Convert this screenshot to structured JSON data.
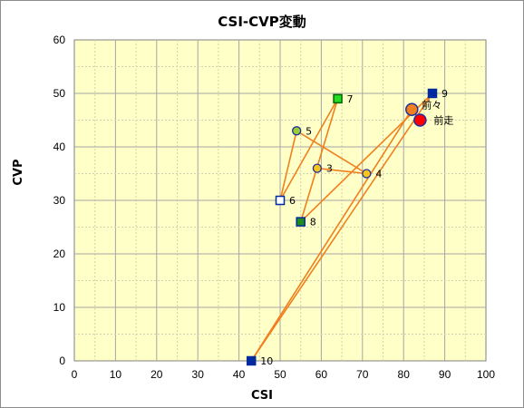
{
  "chart_data": {
    "type": "scatter",
    "title": "CSI-CVP変動",
    "xlabel": "CSI",
    "ylabel": "CVP",
    "xlim": [
      0,
      100
    ],
    "ylim": [
      0,
      60
    ],
    "x_ticks": [
      0,
      10,
      20,
      30,
      40,
      50,
      60,
      70,
      80,
      90,
      100
    ],
    "y_ticks": [
      0,
      10,
      20,
      30,
      40,
      50,
      60
    ],
    "grid": true,
    "minor_grid_step": 5,
    "colors": {
      "plot_bg": "#ffffc8",
      "grid_major": "#a6a6a6",
      "grid_minor": "#d2d2b0",
      "line": "#f07f1e",
      "navy": "#002a9e"
    },
    "path_order": [
      "3",
      "4",
      "5",
      "6",
      "7",
      "8",
      "9",
      "10",
      "前々",
      "前走"
    ],
    "points": [
      {
        "label": "3",
        "x": 59,
        "y": 36,
        "marker": "circle",
        "fill": "#f5c518",
        "stroke": "#1f2f9f"
      },
      {
        "label": "4",
        "x": 71,
        "y": 35,
        "marker": "circle",
        "fill": "#f5c518",
        "stroke": "#1f2f9f"
      },
      {
        "label": "5",
        "x": 54,
        "y": 43,
        "marker": "circle",
        "fill": "#9acd32",
        "stroke": "#1f2f9f"
      },
      {
        "label": "6",
        "x": 50,
        "y": 30,
        "marker": "square",
        "fill": "#ffffff",
        "stroke": "#002a9e"
      },
      {
        "label": "7",
        "x": 64,
        "y": 49,
        "marker": "square",
        "fill": "#22dd22",
        "stroke": "#006400"
      },
      {
        "label": "8",
        "x": 55,
        "y": 26,
        "marker": "square",
        "fill": "#1e8c1e",
        "stroke": "#002a9e"
      },
      {
        "label": "9",
        "x": 87,
        "y": 50,
        "marker": "square",
        "fill": "#002a9e",
        "stroke": "#002a9e"
      },
      {
        "label": "10",
        "x": 43,
        "y": 0,
        "marker": "square",
        "fill": "#002a9e",
        "stroke": "#002a9e"
      },
      {
        "label": "前々",
        "x": 82,
        "y": 47,
        "marker": "big-circle",
        "fill": "#f07f1e",
        "stroke": "#1f2f9f"
      },
      {
        "label": "前走",
        "x": 84,
        "y": 45,
        "marker": "big-circle",
        "fill": "#ff0000",
        "stroke": "#1f2f9f"
      }
    ]
  }
}
